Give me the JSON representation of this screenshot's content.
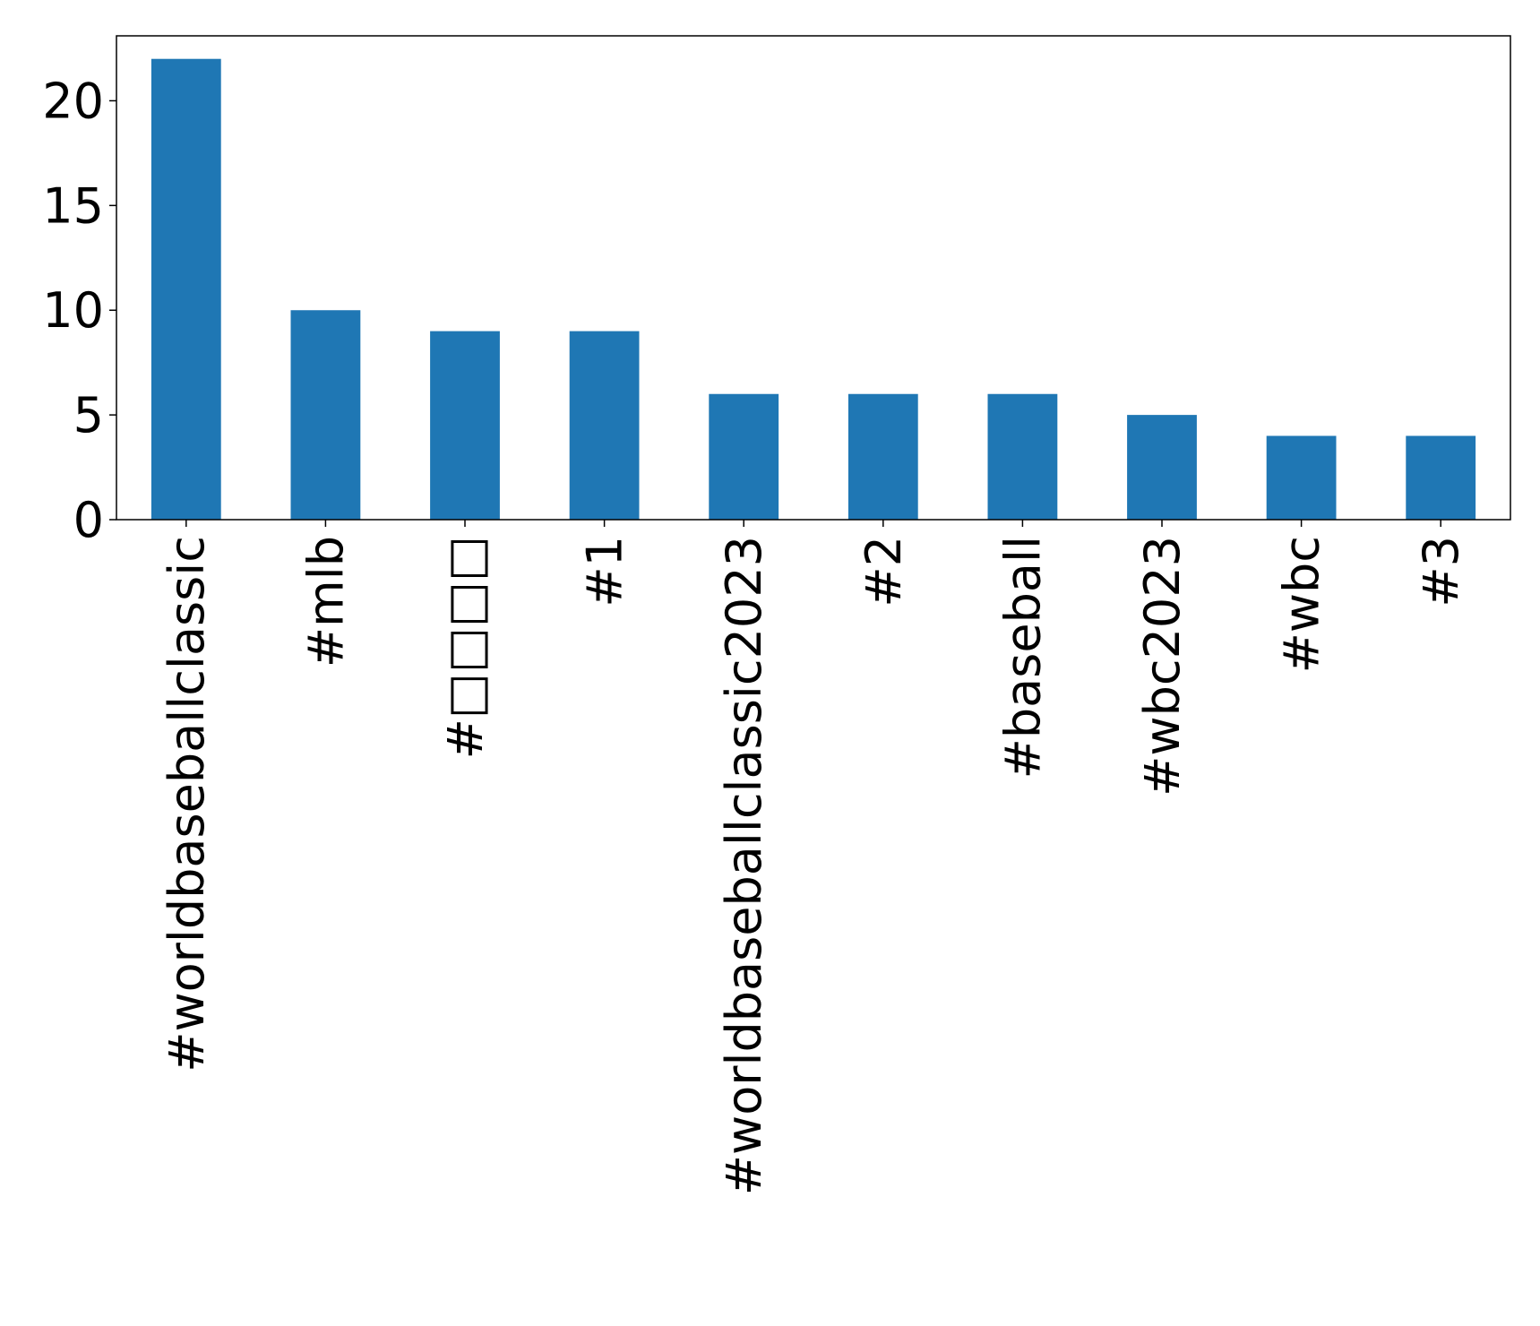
{
  "chart_data": {
    "type": "bar",
    "categories": [
      "#worldbaseballclassic",
      "#mlb",
      "#□□□□",
      "#1",
      "#worldbaseballclassic2023",
      "#2",
      "#baseball",
      "#wbc2023",
      "#wbc",
      "#3"
    ],
    "values": [
      22,
      10,
      9,
      9,
      6,
      6,
      6,
      5,
      4,
      4
    ],
    "title": "",
    "xlabel": "",
    "ylabel": "",
    "ylim": [
      0,
      23.1
    ],
    "yticks": [
      0,
      5,
      10,
      15,
      20
    ],
    "grid": false,
    "legend": "none",
    "bar_color": "#1f77b4",
    "x_tick_rotation": "vertical"
  }
}
